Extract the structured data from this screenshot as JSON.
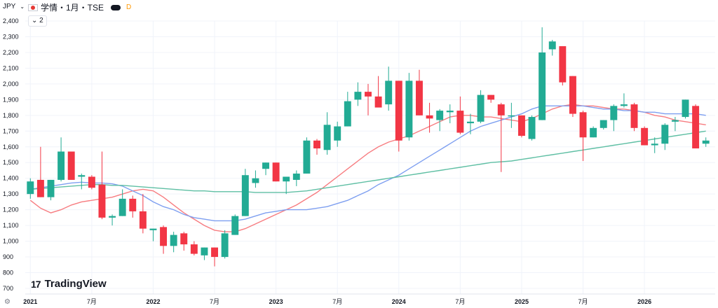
{
  "header": {
    "currency": "JPY",
    "symbol": "学情・1月・TSE",
    "badge": "D",
    "indicator_count": "2"
  },
  "brand": {
    "name": "TradingView",
    "mark": "17"
  },
  "colors": {
    "up": "#22ab94",
    "down": "#f23645",
    "ma_fast": "#f77c80",
    "ma_mid": "#7e9ff0",
    "ma_slow": "#5fbfa4",
    "grid": "#f0f3fa",
    "text": "#131722"
  },
  "icons": [
    "chevron-down-icon",
    "flag-icon",
    "settings-icon",
    "tradingview-logo-icon"
  ],
  "chart_data": {
    "type": "candlestick",
    "ylim": [
      700,
      2400
    ],
    "yticks": [
      700,
      800,
      900,
      1000,
      1100,
      1200,
      1300,
      1400,
      1500,
      1600,
      1700,
      1800,
      1900,
      2000,
      2100,
      2200,
      2300,
      2400
    ],
    "ytick_labels": [
      "700",
      "800",
      "900",
      "1,000",
      "1,100",
      "1,200",
      "1,300",
      "1,400",
      "1,500",
      "1,600",
      "1,700",
      "1,800",
      "1,900",
      "2,000",
      "2,100",
      "2,200",
      "2,300",
      "2,400"
    ],
    "xticks": [
      {
        "label": "2021",
        "index": 0
      },
      {
        "label": "7月",
        "index": 6
      },
      {
        "label": "2022",
        "index": 12
      },
      {
        "label": "7月",
        "index": 18
      },
      {
        "label": "2023",
        "index": 24
      },
      {
        "label": "7月",
        "index": 30
      },
      {
        "label": "2024",
        "index": 36
      },
      {
        "label": "7月",
        "index": 42
      },
      {
        "label": "2025",
        "index": 48
      },
      {
        "label": "7月",
        "index": 54
      },
      {
        "label": "2026",
        "index": 60
      }
    ],
    "candles": [
      [
        1300,
        1400,
        1270,
        1380
      ],
      [
        1390,
        1600,
        1280,
        1280
      ],
      [
        1280,
        1390,
        1260,
        1390
      ],
      [
        1390,
        1660,
        1380,
        1570
      ],
      [
        1570,
        1570,
        1390,
        1390
      ],
      [
        1410,
        1430,
        1330,
        1420
      ],
      [
        1410,
        1420,
        1330,
        1340
      ],
      [
        1360,
        1570,
        1140,
        1150
      ],
      [
        1150,
        1170,
        1100,
        1160
      ],
      [
        1160,
        1330,
        1160,
        1270
      ],
      [
        1270,
        1290,
        1150,
        1190
      ],
      [
        1190,
        1300,
        1050,
        1080
      ],
      [
        1070,
        1080,
        1000,
        1080
      ],
      [
        1090,
        1100,
        920,
        970
      ],
      [
        970,
        1060,
        930,
        1040
      ],
      [
        1050,
        1060,
        940,
        980
      ],
      [
        980,
        1000,
        910,
        920
      ],
      [
        910,
        960,
        880,
        960
      ],
      [
        960,
        960,
        840,
        900
      ],
      [
        900,
        1070,
        890,
        1050
      ],
      [
        1040,
        1170,
        1040,
        1160
      ],
      [
        1160,
        1460,
        1160,
        1420
      ],
      [
        1370,
        1450,
        1340,
        1400
      ],
      [
        1460,
        1500,
        1420,
        1500
      ],
      [
        1500,
        1500,
        1380,
        1380
      ],
      [
        1380,
        1400,
        1300,
        1410
      ],
      [
        1390,
        1450,
        1350,
        1430
      ],
      [
        1430,
        1660,
        1430,
        1640
      ],
      [
        1640,
        1650,
        1550,
        1590
      ],
      [
        1580,
        1820,
        1550,
        1740
      ],
      [
        1640,
        1760,
        1600,
        1730
      ],
      [
        1730,
        1950,
        1730,
        1890
      ],
      [
        1900,
        2010,
        1860,
        1950
      ],
      [
        1950,
        2000,
        1800,
        1920
      ],
      [
        1920,
        2050,
        1860,
        1850
      ],
      [
        1870,
        2110,
        1830,
        2020
      ],
      [
        2020,
        2020,
        1570,
        1640
      ],
      [
        1660,
        2070,
        1640,
        2020
      ],
      [
        2020,
        2090,
        1800,
        1800
      ],
      [
        1800,
        1880,
        1690,
        1780
      ],
      [
        1770,
        1840,
        1700,
        1830
      ],
      [
        1820,
        1870,
        1750,
        1830
      ],
      [
        1830,
        1920,
        1680,
        1690
      ],
      [
        1750,
        1810,
        1680,
        1760
      ],
      [
        1760,
        1960,
        1750,
        1930
      ],
      [
        1930,
        1930,
        1880,
        1900
      ],
      [
        1870,
        1880,
        1440,
        1800
      ],
      [
        1800,
        1880,
        1720,
        1800
      ],
      [
        1800,
        1800,
        1660,
        1670
      ],
      [
        1650,
        1800,
        1640,
        1790
      ],
      [
        1770,
        2360,
        1770,
        2200
      ],
      [
        2220,
        2280,
        2180,
        2270
      ],
      [
        2240,
        2240,
        1990,
        2010
      ],
      [
        2050,
        2050,
        1790,
        1810
      ],
      [
        1820,
        1830,
        1510,
        1660
      ],
      [
        1660,
        1730,
        1660,
        1720
      ],
      [
        1720,
        1770,
        1710,
        1770
      ],
      [
        1770,
        1870,
        1700,
        1860
      ],
      [
        1860,
        1940,
        1850,
        1870
      ],
      [
        1870,
        1880,
        1700,
        1720
      ],
      [
        1720,
        1730,
        1610,
        1610
      ],
      [
        1610,
        1660,
        1560,
        1620
      ],
      [
        1620,
        1750,
        1580,
        1740
      ],
      [
        1760,
        1790,
        1700,
        1770
      ],
      [
        1790,
        1900,
        1780,
        1900
      ],
      [
        1860,
        1870,
        1590,
        1590
      ],
      [
        1620,
        1660,
        1600,
        1640
      ]
    ],
    "series": [
      {
        "values": [
          1260,
          1210,
          1180,
          1200,
          1230,
          1250,
          1260,
          1270,
          1280,
          1300,
          1320,
          1330,
          1320,
          1280,
          1230,
          1180,
          1140,
          1100,
          1070,
          1060,
          1060,
          1080,
          1110,
          1140,
          1170,
          1200,
          1230,
          1270,
          1310,
          1360,
          1410,
          1460,
          1510,
          1560,
          1600,
          1630,
          1650,
          1670,
          1700,
          1730,
          1760,
          1790,
          1800,
          1800,
          1790,
          1790,
          1780,
          1770,
          1760,
          1780,
          1810,
          1840,
          1860,
          1870,
          1860,
          1860,
          1850,
          1840,
          1840,
          1830,
          1820,
          1800,
          1790,
          1770,
          1760,
          1750,
          1740
        ]
      },
      {
        "values": [
          1330,
          1340,
          1350,
          1360,
          1370,
          1375,
          1370,
          1370,
          1365,
          1350,
          1320,
          1290,
          1250,
          1220,
          1200,
          1170,
          1150,
          1140,
          1130,
          1130,
          1130,
          1140,
          1160,
          1180,
          1190,
          1200,
          1200,
          1200,
          1210,
          1220,
          1240,
          1260,
          1290,
          1320,
          1360,
          1390,
          1420,
          1460,
          1500,
          1540,
          1580,
          1620,
          1660,
          1700,
          1730,
          1750,
          1770,
          1790,
          1810,
          1840,
          1860,
          1860,
          1860,
          1860,
          1860,
          1850,
          1840,
          1840,
          1830,
          1830,
          1820,
          1820,
          1810,
          1810,
          1810,
          1810,
          1800
        ]
      },
      {
        "values": [
          1330,
          1335,
          1340,
          1345,
          1350,
          1355,
          1360,
          1360,
          1355,
          1355,
          1350,
          1345,
          1340,
          1335,
          1330,
          1325,
          1320,
          1320,
          1315,
          1315,
          1315,
          1315,
          1310,
          1310,
          1310,
          1310,
          1315,
          1320,
          1330,
          1340,
          1350,
          1360,
          1370,
          1380,
          1390,
          1400,
          1410,
          1420,
          1430,
          1440,
          1450,
          1460,
          1470,
          1480,
          1490,
          1500,
          1505,
          1510,
          1520,
          1530,
          1540,
          1550,
          1560,
          1570,
          1580,
          1590,
          1600,
          1610,
          1620,
          1630,
          1640,
          1650,
          1660,
          1670,
          1680,
          1690,
          1700
        ]
      }
    ],
    "price_scale_side": "left",
    "grid": true
  }
}
